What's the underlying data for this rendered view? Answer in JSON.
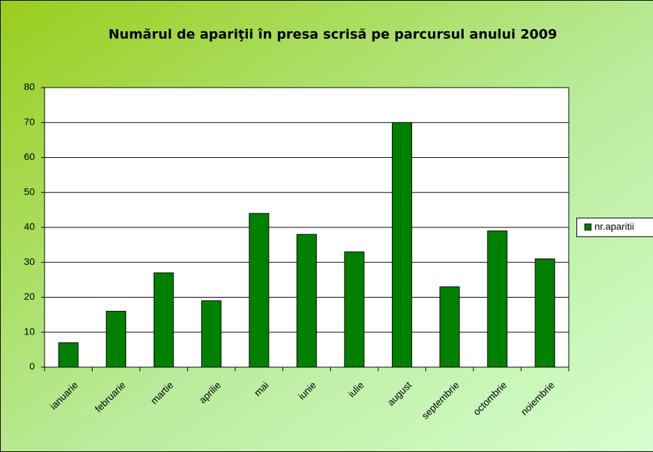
{
  "chart_data": {
    "type": "bar",
    "title": "Numărul de apariţii în presa scrisă pe parcursul anului 2009",
    "categories": [
      "ianuarie",
      "februarie",
      "martie",
      "aprilie",
      "mai",
      "iunie",
      "iulie",
      "august",
      "septembrie",
      "octombrie",
      "noiembrie"
    ],
    "series": [
      {
        "name": "nr.aparitii",
        "color": "#008000",
        "values": [
          7,
          16,
          27,
          19,
          44,
          38,
          33,
          70,
          23,
          39,
          31
        ]
      }
    ],
    "ylim": [
      0,
      80
    ],
    "yticks": [
      0,
      10,
      20,
      30,
      40,
      50,
      60,
      70,
      80
    ],
    "grid": true,
    "legend": "right"
  }
}
